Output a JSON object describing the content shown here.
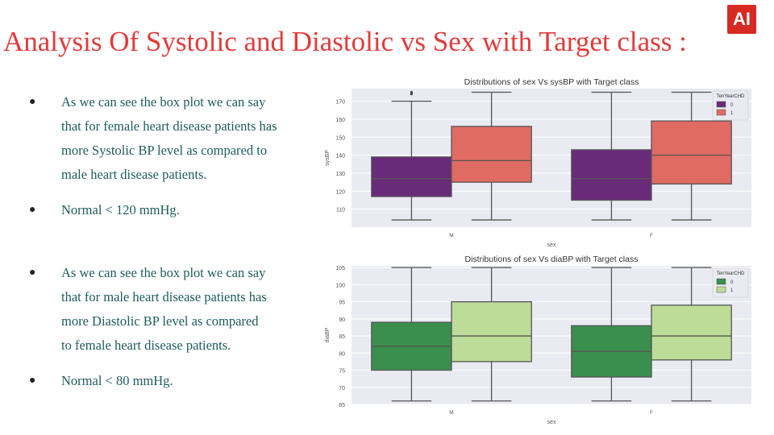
{
  "slide": {
    "title": "Analysis Of Systolic and Diastolic vs Sex with Target class :",
    "logo_text": "AI",
    "title_color": "#e23b3b",
    "logo_color": "#d62a22"
  },
  "bullets_top": [
    {
      "lines": [
        "As we can see the box plot we can  say",
        "that for female heart disease  patients has",
        "more Systolic BP level  as compared to",
        "male heart disease  patients."
      ]
    },
    {
      "lines": [
        "Normal < 120 mmHg."
      ]
    }
  ],
  "bullets_bottom": [
    {
      "lines": [
        "As we can see the box plot we  can say",
        "that for male heart  disease patients has",
        "more  Diastolic BP level as compared",
        "to female heart disease  patients."
      ]
    },
    {
      "lines": [
        "Normal < 80 mmHg."
      ]
    }
  ],
  "chart_data": [
    {
      "type": "box",
      "title": "Distributions of sex Vs sysBP with Target class",
      "xlabel": "sex",
      "ylabel": "sysBP",
      "categories": [
        "M",
        "F"
      ],
      "ylim": [
        100,
        177
      ],
      "yticks": [
        110,
        120,
        130,
        140,
        150,
        160,
        170
      ],
      "legend": {
        "title": "TenYearCHD",
        "position": "top-right"
      },
      "grid": true,
      "series": [
        {
          "name": "0",
          "color": "#6a2a7a",
          "boxes": [
            {
              "whislo": 104,
              "q1": 117,
              "med": 127,
              "q3": 139,
              "whishi": 170,
              "fliers": [
                174,
                175
              ]
            },
            {
              "whislo": 104,
              "q1": 115,
              "med": 127,
              "q3": 143,
              "whishi": 175,
              "fliers": []
            }
          ]
        },
        {
          "name": "1",
          "color": "#e06b63",
          "boxes": [
            {
              "whislo": 104,
              "q1": 125,
              "med": 137,
              "q3": 156,
              "whishi": 175,
              "fliers": []
            },
            {
              "whislo": 104,
              "q1": 124,
              "med": 140,
              "q3": 159,
              "whishi": 175,
              "fliers": []
            }
          ]
        }
      ]
    },
    {
      "type": "box",
      "title": "Distributions of sex Vs diaBP with Target class",
      "xlabel": "sex",
      "ylabel": "diaBP",
      "categories": [
        "M",
        "F"
      ],
      "ylim": [
        65,
        105.5
      ],
      "yticks": [
        65,
        70,
        75,
        80,
        85,
        90,
        95,
        100,
        105
      ],
      "legend": {
        "title": "TenYearCHD",
        "position": "top-right"
      },
      "grid": true,
      "series": [
        {
          "name": "0",
          "color": "#3a8f4e",
          "boxes": [
            {
              "whislo": 66,
              "q1": 75,
              "med": 82,
              "q3": 89,
              "whishi": 105,
              "fliers": []
            },
            {
              "whislo": 66,
              "q1": 73,
              "med": 80.5,
              "q3": 88,
              "whishi": 105,
              "fliers": []
            }
          ]
        },
        {
          "name": "1",
          "color": "#bcdc98",
          "boxes": [
            {
              "whislo": 66,
              "q1": 77.5,
              "med": 85,
              "q3": 95,
              "whishi": 105,
              "fliers": []
            },
            {
              "whislo": 66,
              "q1": 78,
              "med": 85,
              "q3": 94,
              "whishi": 105,
              "fliers": []
            }
          ]
        }
      ]
    }
  ]
}
